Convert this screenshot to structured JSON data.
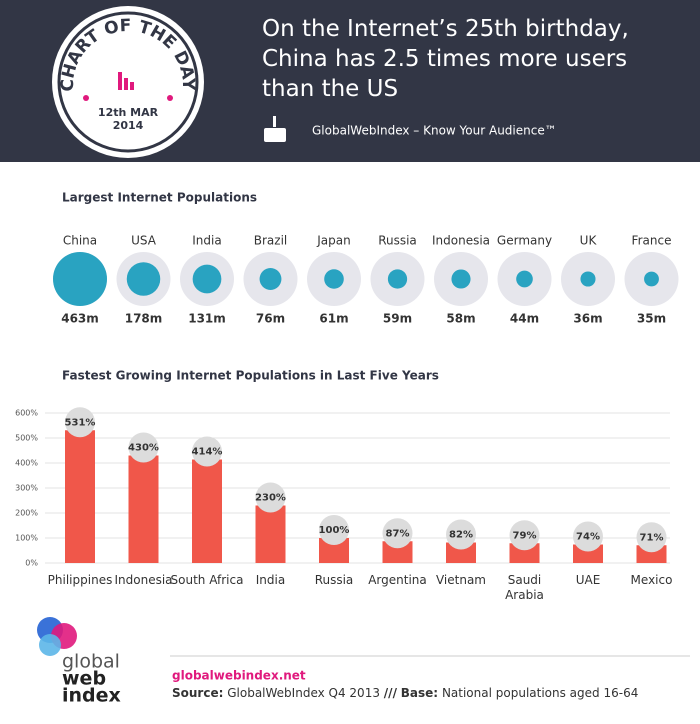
{
  "header": {
    "badge_title": "CHART OF THE DAY",
    "date_line1": "12th MAR",
    "date_line2": "2014",
    "title": "On the Internet’s 25th birthday, China has 2.5 times more users than the US",
    "brand": "GlobalWebIndex – Know Your Audience™"
  },
  "chart_data": [
    {
      "type": "bubble",
      "title": "Largest Internet Populations",
      "categories": [
        "China",
        "USA",
        "India",
        "Brazil",
        "Japan",
        "Russia",
        "Indonesia",
        "Germany",
        "UK",
        "France"
      ],
      "values": [
        463,
        178,
        131,
        76,
        61,
        59,
        58,
        44,
        36,
        35
      ],
      "value_labels": [
        "463m",
        "178m",
        "131m",
        "76m",
        "61m",
        "59m",
        "58m",
        "44m",
        "36m",
        "35m"
      ],
      "color": "#29a3c1"
    },
    {
      "type": "bar",
      "title": "Fastest Growing Internet Populations in Last Five Years",
      "categories": [
        "Philippines",
        "Indonesia",
        "South Africa",
        "India",
        "Russia",
        "Argentina",
        "Vietnam",
        "Saudi Arabia",
        "UAE",
        "Mexico"
      ],
      "values": [
        531,
        430,
        414,
        230,
        100,
        87,
        82,
        79,
        74,
        71
      ],
      "value_labels": [
        "531%",
        "430%",
        "414%",
        "230%",
        "100%",
        "87%",
        "82%",
        "79%",
        "74%",
        "71%"
      ],
      "color": "#f0574a",
      "ylim": [
        0,
        600
      ],
      "yticks": [
        {
          "value": 0,
          "label": "0%"
        },
        {
          "value": 100,
          "label": "100%"
        },
        {
          "value": 200,
          "label": "200%"
        },
        {
          "value": 300,
          "label": "300%"
        },
        {
          "value": 400,
          "label": "400%"
        },
        {
          "value": 500,
          "label": "500%"
        },
        {
          "value": 600,
          "label": "600%"
        }
      ],
      "grid": true
    }
  ],
  "footer": {
    "logo": [
      "global",
      "web",
      "index"
    ],
    "url": "globalwebindex.net",
    "source_label": "Source:",
    "source": "GlobalWebIndex Q4 2013",
    "separator": "///",
    "base_label": "Base:",
    "base": "National populations aged 16-64"
  }
}
